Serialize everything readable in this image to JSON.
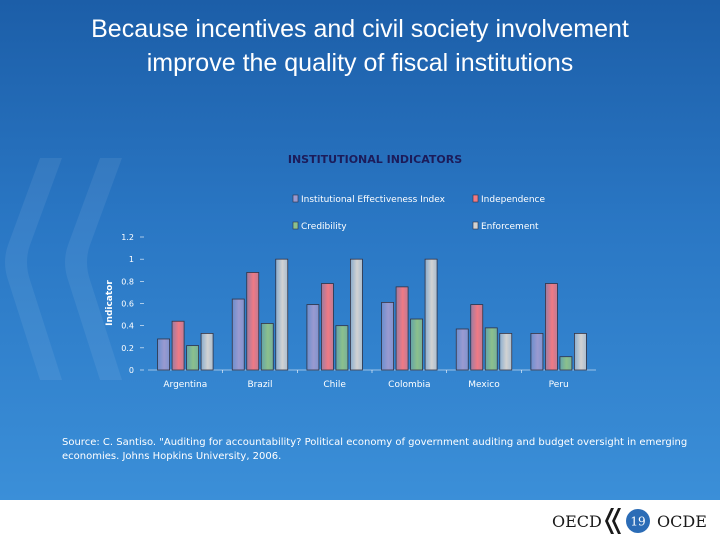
{
  "slide": {
    "title_line1": "Because incentives and civil society involvement",
    "title_line2": "improve the quality of fiscal institutions",
    "source": "Source: C. Santiso. \"Auditing for accountability? Political economy of government auditing and budget oversight in emerging economies. Johns Hopkins University, 2006.",
    "page_number": "19"
  },
  "footer": {
    "brand_left": "OECD",
    "brand_right": "OCDE"
  },
  "chart_data": {
    "type": "bar",
    "title": "INSTITUTIONAL INDICATORS",
    "ylabel": "Indicator",
    "xlabel": "",
    "categories": [
      "Argentina",
      "Brazil",
      "Chile",
      "Colombia",
      "Mexico",
      "Peru"
    ],
    "series": [
      {
        "name": "Institutional Effectiveness Index",
        "color": "#9a9ad0",
        "values": [
          0.28,
          0.64,
          0.59,
          0.61,
          0.37,
          0.33
        ]
      },
      {
        "name": "Independence",
        "color": "#f07a84",
        "values": [
          0.44,
          0.88,
          0.78,
          0.75,
          0.59,
          0.78
        ]
      },
      {
        "name": "Credibility",
        "color": "#8cc08c",
        "values": [
          0.22,
          0.42,
          0.4,
          0.46,
          0.38,
          0.12
        ]
      },
      {
        "name": "Enforcement",
        "color": "#d2d2d2",
        "values": [
          0.33,
          1.0,
          1.0,
          1.0,
          0.33,
          0.33
        ]
      }
    ],
    "ylim": [
      0,
      1.2
    ],
    "yticks": [
      "0",
      "0.2",
      "0.4",
      "0.6",
      "0.8",
      "1",
      "1.2"
    ],
    "legend_position": "top-right",
    "grid": false
  }
}
